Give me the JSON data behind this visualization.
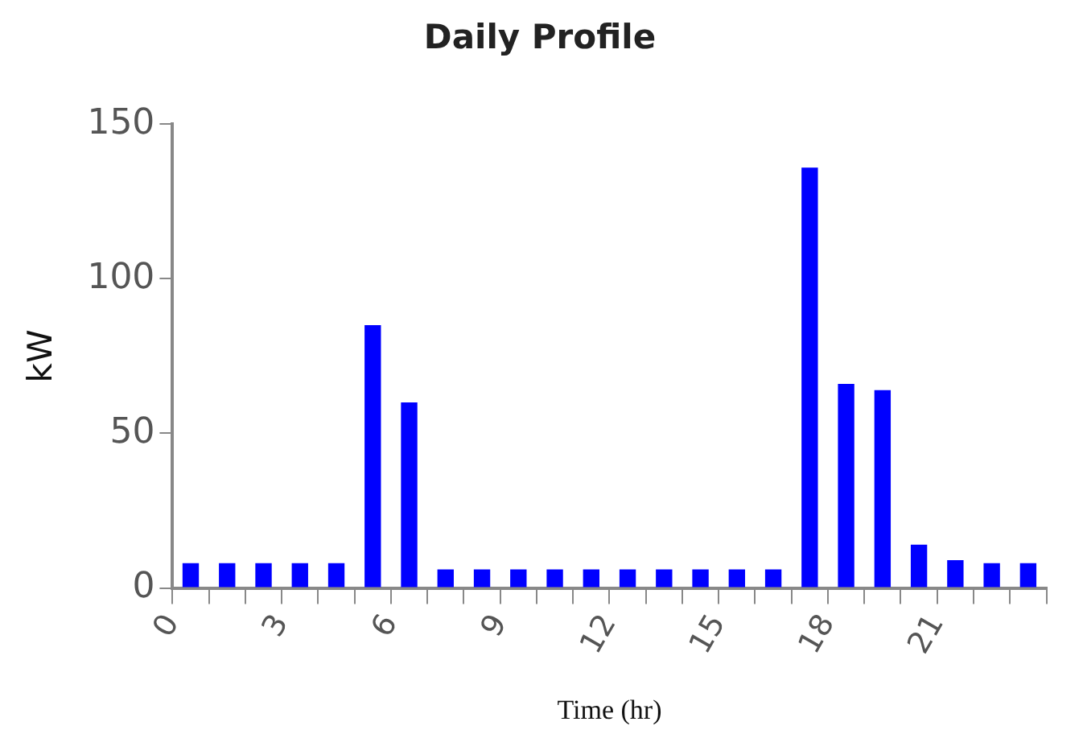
{
  "chart_data": {
    "type": "bar",
    "title": "Daily Profile",
    "xlabel": "Time (hr)",
    "ylabel": "kW",
    "x": [
      0.5,
      1.5,
      2.5,
      3.5,
      4.5,
      5.5,
      6.5,
      7.5,
      8.5,
      9.5,
      10.5,
      11.5,
      12.5,
      13.5,
      14.5,
      15.5,
      16.5,
      17.5,
      18.5,
      19.5,
      20.5,
      21.5,
      22.5,
      23.5
    ],
    "values": [
      8,
      8,
      8,
      8,
      8,
      85,
      60,
      6,
      6,
      6,
      6,
      6,
      6,
      6,
      6,
      6,
      6,
      136,
      66,
      64,
      14,
      9,
      8,
      8
    ],
    "color": "#0000ff",
    "xlim": [
      0,
      24
    ],
    "xticks": [
      0,
      {
        "value": 1,
        "label": null
      },
      {
        "value": 2,
        "label": null
      },
      3,
      {
        "value": 4,
        "label": null
      },
      {
        "value": 5,
        "label": null
      },
      6,
      {
        "value": 7,
        "label": null
      },
      {
        "value": 8,
        "label": null
      },
      9,
      {
        "value": 10,
        "label": null
      },
      {
        "value": 11,
        "label": null
      },
      12,
      {
        "value": 13,
        "label": null
      },
      {
        "value": 14,
        "label": null
      },
      15,
      {
        "value": 16,
        "label": null
      },
      {
        "value": 17,
        "label": null
      },
      18,
      {
        "value": 19,
        "label": null
      },
      {
        "value": 20,
        "label": null
      },
      21,
      {
        "value": 22,
        "label": null
      },
      {
        "value": 23,
        "label": null
      },
      {
        "value": 24,
        "label": null
      }
    ],
    "ylim": [
      0,
      150
    ],
    "yticks": [
      0,
      50,
      100,
      150
    ],
    "grid": false,
    "legend": false
  }
}
